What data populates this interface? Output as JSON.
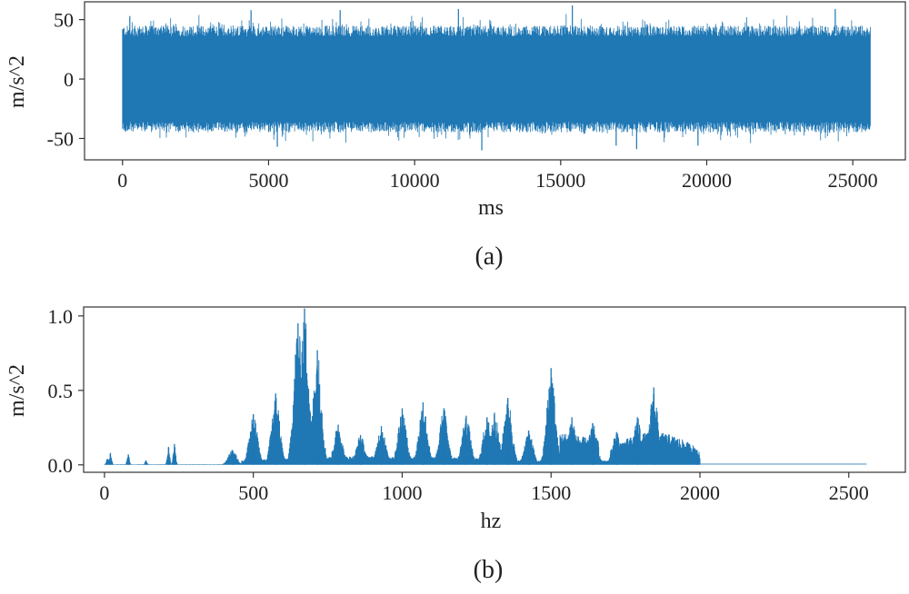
{
  "colors": {
    "series": "#1f77b4",
    "axes": "#333333",
    "text": "#222222"
  },
  "chart_data": [
    {
      "type": "line",
      "caption": "(a)",
      "xlabel": "ms",
      "ylabel": "m/s^2",
      "xlim": [
        -1300,
        26800
      ],
      "ylim": [
        -68,
        65
      ],
      "xticks": [
        0,
        5000,
        10000,
        15000,
        20000,
        25000
      ],
      "xtick_labels": [
        "0",
        "5000",
        "10000",
        "15000",
        "20000",
        "25000"
      ],
      "yticks": [
        50,
        0,
        -50
      ],
      "ytick_labels": [
        "50",
        "0",
        "-50"
      ],
      "grid": false,
      "x_range": [
        0,
        25600
      ],
      "envelope": {
        "typical_upper": 38,
        "typical_lower": -38,
        "peak_max": 62,
        "peak_min": -60
      },
      "peaks": [
        {
          "x": 250,
          "y": 53
        },
        {
          "x": 4400,
          "y": 58
        },
        {
          "x": 7450,
          "y": 58
        },
        {
          "x": 11500,
          "y": 59
        },
        {
          "x": 15400,
          "y": 62
        },
        {
          "x": 24400,
          "y": 59
        },
        {
          "x": 5300,
          "y": -57
        },
        {
          "x": 12300,
          "y": -60
        },
        {
          "x": 16900,
          "y": -56
        },
        {
          "x": 17600,
          "y": -59
        },
        {
          "x": 19700,
          "y": -56
        }
      ]
    },
    {
      "type": "line",
      "caption": "(b)",
      "xlabel": "hz",
      "ylabel": "m/s^2",
      "xlim": [
        -70,
        2690
      ],
      "ylim": [
        -0.05,
        1.06
      ],
      "xticks": [
        0,
        500,
        1000,
        1500,
        2000,
        2500
      ],
      "xtick_labels": [
        "0",
        "500",
        "1000",
        "1500",
        "2000",
        "2500"
      ],
      "yticks": [
        1.0,
        0.5,
        0.0
      ],
      "ytick_labels": [
        "1.0",
        "0.5",
        "0.0"
      ],
      "grid": false,
      "x_range": [
        0,
        2560
      ],
      "peaks": [
        {
          "x": 10,
          "y": 0.04
        },
        {
          "x": 20,
          "y": 0.08
        },
        {
          "x": 80,
          "y": 0.07
        },
        {
          "x": 140,
          "y": 0.03
        },
        {
          "x": 215,
          "y": 0.12
        },
        {
          "x": 235,
          "y": 0.14
        },
        {
          "x": 430,
          "y": 0.1
        },
        {
          "x": 500,
          "y": 0.34
        },
        {
          "x": 575,
          "y": 0.48
        },
        {
          "x": 650,
          "y": 0.95
        },
        {
          "x": 672,
          "y": 1.05
        },
        {
          "x": 715,
          "y": 0.77
        },
        {
          "x": 785,
          "y": 0.27
        },
        {
          "x": 860,
          "y": 0.2
        },
        {
          "x": 930,
          "y": 0.26
        },
        {
          "x": 1000,
          "y": 0.38
        },
        {
          "x": 1070,
          "y": 0.42
        },
        {
          "x": 1140,
          "y": 0.38
        },
        {
          "x": 1215,
          "y": 0.33
        },
        {
          "x": 1285,
          "y": 0.32
        },
        {
          "x": 1310,
          "y": 0.35
        },
        {
          "x": 1355,
          "y": 0.45
        },
        {
          "x": 1425,
          "y": 0.23
        },
        {
          "x": 1500,
          "y": 0.65
        },
        {
          "x": 1570,
          "y": 0.32
        },
        {
          "x": 1640,
          "y": 0.28
        },
        {
          "x": 1720,
          "y": 0.22
        },
        {
          "x": 1790,
          "y": 0.32
        },
        {
          "x": 1845,
          "y": 0.52
        },
        {
          "x": 1990,
          "y": 0.1
        }
      ]
    }
  ]
}
